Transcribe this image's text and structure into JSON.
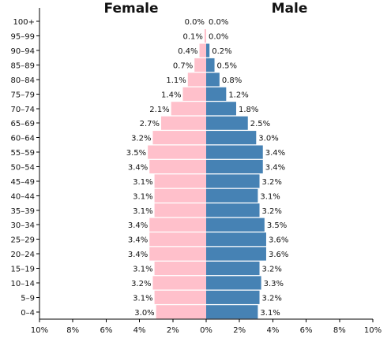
{
  "chart_data": {
    "type": "bar",
    "orientation": "horizontal",
    "categories": [
      "0-4",
      "5-9",
      "10-14",
      "15-19",
      "20-24",
      "25-29",
      "30-34",
      "35-39",
      "40-44",
      "45-49",
      "50-54",
      "55-59",
      "60-64",
      "65-69",
      "70-74",
      "75-79",
      "80-84",
      "85-89",
      "90-94",
      "95-99",
      "100+"
    ],
    "series": [
      {
        "name": "Female",
        "color": "#ffc0cb",
        "values": [
          3.0,
          3.1,
          3.2,
          3.1,
          3.4,
          3.4,
          3.4,
          3.1,
          3.1,
          3.1,
          3.4,
          3.5,
          3.2,
          2.7,
          2.1,
          1.4,
          1.1,
          0.7,
          0.4,
          0.1,
          0.0
        ],
        "labels": [
          "3.0%",
          "3.1%",
          "3.2%",
          "3.1%",
          "3.4%",
          "3.4%",
          "3.4%",
          "3.1%",
          "3.1%",
          "3.1%",
          "3.4%",
          "3.5%",
          "3.2%",
          "2.7%",
          "2.1%",
          "1.4%",
          "1.1%",
          "0.7%",
          "0.4%",
          "0.1%",
          "0.0%"
        ]
      },
      {
        "name": "Male",
        "color": "#4682b4",
        "values": [
          3.1,
          3.2,
          3.3,
          3.2,
          3.6,
          3.6,
          3.5,
          3.2,
          3.1,
          3.2,
          3.4,
          3.4,
          3.0,
          2.5,
          1.8,
          1.2,
          0.8,
          0.5,
          0.2,
          0.0,
          0.0
        ],
        "labels": [
          "3.1%",
          "3.2%",
          "3.3%",
          "3.2%",
          "3.6%",
          "3.6%",
          "3.5%",
          "3.2%",
          "3.1%",
          "3.2%",
          "3.4%",
          "3.4%",
          "3.0%",
          "2.5%",
          "1.8%",
          "1.2%",
          "0.8%",
          "0.5%",
          "0.2%",
          "0.0%",
          "0.0%"
        ]
      }
    ],
    "category_tick_labels": [
      "0–4",
      "5–9",
      "10–14",
      "15–19",
      "20–24",
      "25–29",
      "30–34",
      "35–39",
      "40–44",
      "45–49",
      "50–54",
      "55–59",
      "60–64",
      "65–69",
      "70–74",
      "75–79",
      "80–84",
      "85–89",
      "90–94",
      "95–99",
      "100+"
    ],
    "x_ticks": [
      -10,
      -8,
      -6,
      -4,
      -2,
      0,
      2,
      4,
      6,
      8,
      10
    ],
    "x_tick_labels": [
      "10%",
      "8%",
      "6%",
      "4%",
      "2%",
      "0%",
      "2%",
      "4%",
      "6%",
      "8%",
      "10%"
    ],
    "xlim": [
      -10,
      10
    ],
    "xlabel": "",
    "ylabel": "",
    "grid": false,
    "legend": "none"
  }
}
